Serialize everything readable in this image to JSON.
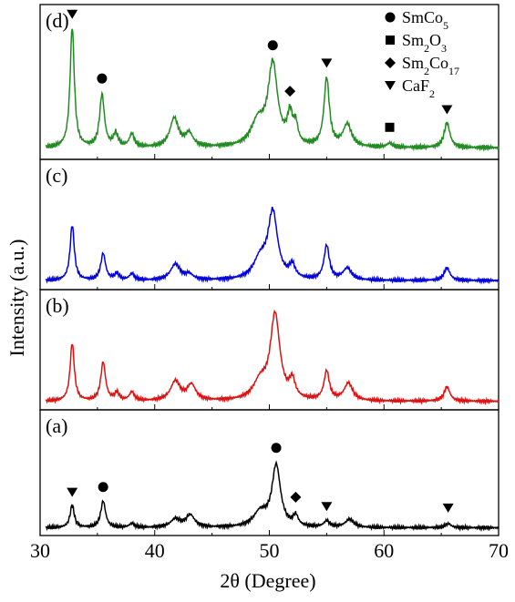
{
  "chart_data": {
    "type": "line",
    "xlabel": "2θ (Degree)",
    "ylabel": "Intensity (a.u.)",
    "xlim": [
      30,
      70
    ],
    "xticks": [
      30,
      40,
      50,
      60,
      70
    ],
    "legend_placement": "top-right",
    "legend": [
      {
        "marker": "circle",
        "html": "SmCo<tspan baseline-shift=\"sub\" font-size=\"12\">5</tspan>",
        "label": "SmCo5"
      },
      {
        "marker": "square",
        "html": "Sm<tspan baseline-shift=\"sub\" font-size=\"12\">2</tspan>O<tspan baseline-shift=\"sub\" font-size=\"12\">3</tspan>",
        "label": "Sm2O3"
      },
      {
        "marker": "diamond",
        "html": "Sm<tspan baseline-shift=\"sub\" font-size=\"12\">2</tspan>Co<tspan baseline-shift=\"sub\" font-size=\"12\">17</tspan>",
        "label": "Sm2Co17"
      },
      {
        "marker": "triangle-down",
        "html": "CaF<tspan baseline-shift=\"sub\" font-size=\"12\">2</tspan>",
        "label": "CaF2"
      }
    ],
    "series": [
      {
        "name": "(d)",
        "color": "#228b22",
        "baseline": 0.06,
        "peaks": [
          [
            32.8,
            0.92,
            0.22
          ],
          [
            35.4,
            0.4,
            0.25
          ],
          [
            36.6,
            0.1,
            0.25
          ],
          [
            38.0,
            0.1,
            0.25
          ],
          [
            41.7,
            0.22,
            0.45
          ],
          [
            43.0,
            0.1,
            0.4
          ],
          [
            49.0,
            0.18,
            0.7
          ],
          [
            50.3,
            0.62,
            0.5
          ],
          [
            51.8,
            0.22,
            0.28
          ],
          [
            52.3,
            0.14,
            0.22
          ],
          [
            55.0,
            0.52,
            0.28
          ],
          [
            56.8,
            0.17,
            0.45
          ],
          [
            60.5,
            0.03,
            0.3
          ],
          [
            65.5,
            0.19,
            0.3
          ]
        ],
        "markers": [
          {
            "x": 32.8,
            "shape": "triangle-down"
          },
          {
            "x": 35.4,
            "shape": "circle"
          },
          {
            "x": 50.3,
            "shape": "circle"
          },
          {
            "x": 51.8,
            "shape": "diamond"
          },
          {
            "x": 55.0,
            "shape": "triangle-down"
          },
          {
            "x": 60.5,
            "shape": "square"
          },
          {
            "x": 65.5,
            "shape": "triangle-down"
          }
        ]
      },
      {
        "name": "(c)",
        "color": "#0000dd",
        "baseline": 0.05,
        "peaks": [
          [
            32.8,
            0.52,
            0.22
          ],
          [
            35.5,
            0.25,
            0.25
          ],
          [
            36.7,
            0.06,
            0.25
          ],
          [
            38.0,
            0.06,
            0.25
          ],
          [
            41.8,
            0.15,
            0.5
          ],
          [
            43.0,
            0.05,
            0.4
          ],
          [
            49.2,
            0.18,
            0.7
          ],
          [
            50.3,
            0.62,
            0.5
          ],
          [
            52.0,
            0.12,
            0.3
          ],
          [
            55.0,
            0.32,
            0.28
          ],
          [
            56.8,
            0.11,
            0.45
          ],
          [
            65.5,
            0.12,
            0.3
          ]
        ],
        "markers": []
      },
      {
        "name": "(b)",
        "color": "#dd1111",
        "baseline": 0.05,
        "peaks": [
          [
            32.8,
            0.6,
            0.22
          ],
          [
            35.5,
            0.4,
            0.25
          ],
          [
            36.7,
            0.08,
            0.25
          ],
          [
            38.0,
            0.09,
            0.25
          ],
          [
            41.8,
            0.2,
            0.5
          ],
          [
            43.2,
            0.16,
            0.45
          ],
          [
            49.2,
            0.18,
            0.7
          ],
          [
            50.5,
            0.88,
            0.5
          ],
          [
            52.0,
            0.18,
            0.3
          ],
          [
            55.0,
            0.3,
            0.28
          ],
          [
            56.9,
            0.18,
            0.45
          ],
          [
            65.5,
            0.15,
            0.3
          ]
        ],
        "markers": []
      },
      {
        "name": "(a)",
        "color": "#000000",
        "baseline": 0.04,
        "peaks": [
          [
            32.8,
            0.22,
            0.22
          ],
          [
            35.5,
            0.26,
            0.25
          ],
          [
            38.0,
            0.04,
            0.25
          ],
          [
            41.8,
            0.08,
            0.5
          ],
          [
            43.1,
            0.12,
            0.45
          ],
          [
            49.2,
            0.14,
            0.7
          ],
          [
            50.6,
            0.6,
            0.45
          ],
          [
            52.3,
            0.1,
            0.25
          ],
          [
            55.0,
            0.06,
            0.3
          ],
          [
            57.0,
            0.08,
            0.45
          ],
          [
            65.6,
            0.04,
            0.3
          ]
        ],
        "markers": [
          {
            "x": 32.8,
            "shape": "triangle-down"
          },
          {
            "x": 35.5,
            "shape": "circle"
          },
          {
            "x": 50.6,
            "shape": "circle"
          },
          {
            "x": 52.3,
            "shape": "diamond"
          },
          {
            "x": 55.0,
            "shape": "triangle-down"
          },
          {
            "x": 65.6,
            "shape": "triangle-down"
          }
        ]
      }
    ]
  }
}
